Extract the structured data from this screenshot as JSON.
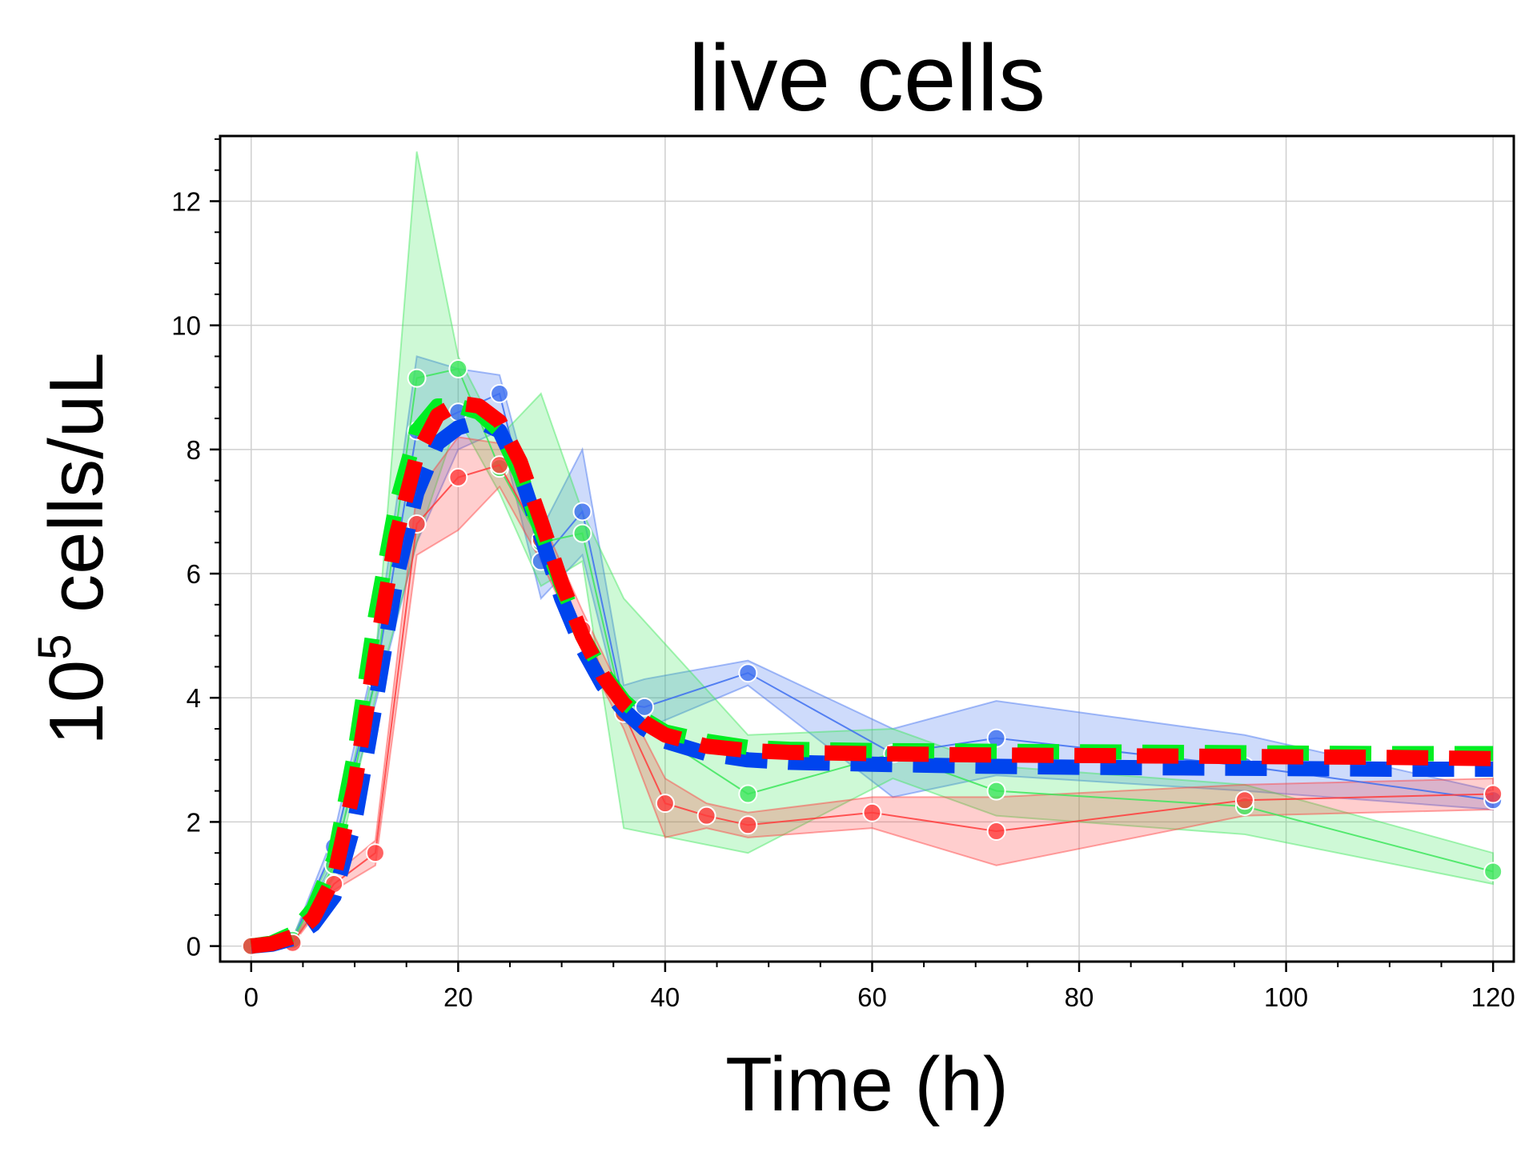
{
  "chart_data": {
    "type": "line",
    "title": "live cells",
    "xlabel": "Time (h)",
    "ylabel_base": "10",
    "ylabel_exp": "5",
    "ylabel_rest": " cells/uL",
    "xlim": [
      -3,
      122
    ],
    "ylim": [
      -0.25,
      13.05
    ],
    "xticks": [
      0,
      20,
      40,
      60,
      80,
      100,
      120
    ],
    "yticks": [
      0,
      2,
      4,
      6,
      8,
      10,
      12
    ],
    "x_minor_step": 5,
    "y_minor_step": 0.5,
    "grid": true,
    "series": [
      {
        "color": "#3d6ff0",
        "x": [
          0,
          4,
          8,
          12,
          16,
          20,
          24,
          28,
          32,
          36,
          38,
          48,
          62,
          72,
          96,
          120
        ],
        "values": [
          0.0,
          0.08,
          1.6,
          4.3,
          8.3,
          8.6,
          8.9,
          6.2,
          7.0,
          3.9,
          3.85,
          4.4,
          3.1,
          3.35,
          2.9,
          2.35
        ],
        "lower": [
          0.0,
          0.05,
          1.4,
          3.9,
          6.5,
          8.0,
          8.3,
          5.6,
          6.3,
          3.6,
          3.5,
          4.2,
          2.4,
          2.75,
          2.5,
          2.2
        ],
        "upper": [
          0.05,
          0.12,
          1.8,
          4.7,
          9.5,
          9.3,
          9.2,
          6.7,
          8.0,
          4.2,
          4.3,
          4.6,
          3.5,
          3.95,
          3.4,
          2.5
        ]
      },
      {
        "color": "#3de65c",
        "x": [
          0,
          4,
          8,
          12,
          16,
          20,
          24,
          28,
          32,
          36,
          48,
          62,
          72,
          96,
          120
        ],
        "values": [
          0.0,
          0.1,
          1.3,
          4.3,
          9.15,
          9.3,
          7.7,
          6.5,
          6.65,
          3.75,
          2.45,
          3.1,
          2.5,
          2.25,
          1.2
        ],
        "lower": [
          0.0,
          0.05,
          1.1,
          4.0,
          6.5,
          8.5,
          7.3,
          5.8,
          6.2,
          1.9,
          1.5,
          2.7,
          2.1,
          1.8,
          1.0
        ],
        "upper": [
          0.05,
          0.15,
          1.5,
          4.6,
          12.8,
          9.5,
          8.2,
          8.9,
          7.0,
          5.6,
          3.4,
          3.5,
          2.9,
          2.6,
          1.5
        ]
      },
      {
        "color": "#ff3b3b",
        "x": [
          0,
          4,
          8,
          12,
          16,
          20,
          24,
          28,
          32,
          36,
          40,
          44,
          48,
          60,
          72,
          96,
          120
        ],
        "values": [
          0.0,
          0.05,
          1.0,
          1.5,
          6.8,
          7.55,
          7.75,
          6.55,
          5.1,
          3.75,
          2.3,
          2.1,
          1.95,
          2.15,
          1.85,
          2.35,
          2.45
        ],
        "lower": [
          0.0,
          0.03,
          0.9,
          1.3,
          6.3,
          6.7,
          7.4,
          6.2,
          4.8,
          3.5,
          1.75,
          1.9,
          1.75,
          1.9,
          1.3,
          2.1,
          2.2
        ],
        "upper": [
          0.03,
          0.08,
          1.15,
          1.7,
          7.3,
          8.2,
          8.1,
          6.9,
          5.4,
          4.0,
          2.7,
          2.3,
          2.15,
          2.4,
          2.4,
          2.6,
          2.7
        ]
      }
    ],
    "fit_curves": [
      {
        "color": "#0044ee",
        "x": [
          0,
          2,
          4,
          6,
          8,
          10,
          12,
          14,
          16,
          18,
          20,
          22,
          24,
          26,
          28,
          30,
          32,
          34,
          36,
          38,
          40,
          44,
          48,
          52,
          60,
          70,
          80,
          90,
          100,
          110,
          120
        ],
        "values": [
          0.0,
          0.03,
          0.12,
          0.35,
          0.8,
          2.0,
          3.9,
          5.9,
          7.3,
          8.1,
          8.35,
          8.45,
          8.3,
          7.6,
          6.6,
          5.6,
          4.8,
          4.2,
          3.8,
          3.5,
          3.3,
          3.1,
          3.0,
          2.96,
          2.93,
          2.9,
          2.88,
          2.87,
          2.86,
          2.85,
          2.85
        ]
      },
      {
        "color": "#00ee22",
        "x": [
          0,
          2,
          4,
          6,
          8,
          10,
          12,
          14,
          16,
          18,
          20,
          22,
          24,
          26,
          28,
          30,
          32,
          34,
          36,
          38,
          40,
          44,
          48,
          52,
          60,
          70,
          80,
          90,
          100,
          110,
          120
        ],
        "values": [
          0.0,
          0.05,
          0.2,
          0.6,
          1.4,
          3.1,
          5.3,
          7.1,
          8.3,
          8.7,
          8.7,
          8.6,
          8.3,
          7.6,
          6.7,
          5.8,
          5.0,
          4.4,
          3.95,
          3.65,
          3.45,
          3.3,
          3.2,
          3.17,
          3.15,
          3.14,
          3.13,
          3.12,
          3.11,
          3.1,
          3.1
        ]
      },
      {
        "color": "#ff0000",
        "x": [
          0,
          2,
          4,
          6,
          8,
          10,
          12,
          14,
          16,
          18,
          20,
          22,
          24,
          26,
          28,
          30,
          32,
          34,
          36,
          38,
          40,
          44,
          48,
          52,
          60,
          70,
          80,
          90,
          100,
          110,
          120
        ],
        "values": [
          0.0,
          0.04,
          0.15,
          0.45,
          1.1,
          2.6,
          4.7,
          6.6,
          7.9,
          8.55,
          8.75,
          8.7,
          8.45,
          7.8,
          6.85,
          5.85,
          5.0,
          4.35,
          3.9,
          3.6,
          3.4,
          3.22,
          3.15,
          3.12,
          3.1,
          3.08,
          3.07,
          3.06,
          3.05,
          3.04,
          3.02
        ]
      }
    ]
  }
}
